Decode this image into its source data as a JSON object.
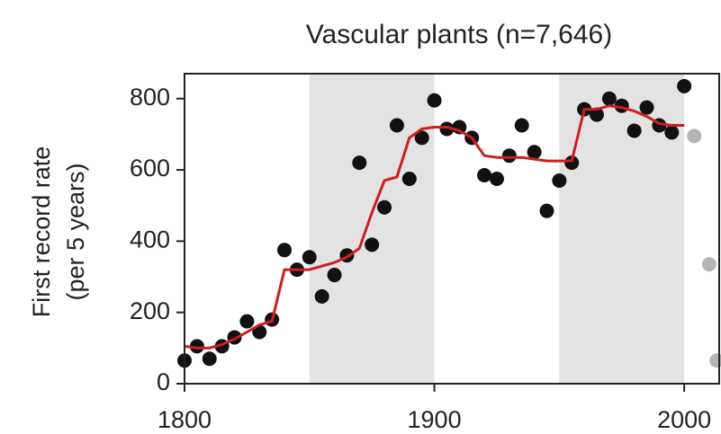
{
  "chart_data": {
    "type": "scatter",
    "title": "Vascular plants (n=7,646)",
    "y_label": [
      "First record rate",
      "(per 5 years)"
    ],
    "xlim": [
      1800,
      2014
    ],
    "ylim": [
      0,
      870
    ],
    "xticks": [
      1800,
      1900,
      2000
    ],
    "yticks": [
      0,
      200,
      400,
      600,
      800
    ],
    "shaded_ranges": [
      [
        1850,
        1900
      ],
      [
        1950,
        2000
      ]
    ],
    "shade_color": "#e3e3e3",
    "points": {
      "color": "#111111",
      "x": [
        1800,
        1805,
        1810,
        1815,
        1820,
        1825,
        1830,
        1835,
        1840,
        1845,
        1850,
        1855,
        1860,
        1865,
        1870,
        1875,
        1880,
        1885,
        1890,
        1895,
        1900,
        1905,
        1910,
        1915,
        1920,
        1925,
        1930,
        1935,
        1940,
        1945,
        1950,
        1955,
        1960,
        1965,
        1970,
        1975,
        1980,
        1985,
        1990,
        1995,
        2000
      ],
      "values": [
        65,
        105,
        70,
        105,
        130,
        175,
        145,
        180,
        375,
        320,
        355,
        245,
        305,
        360,
        620,
        390,
        495,
        725,
        575,
        690,
        795,
        715,
        720,
        690,
        585,
        575,
        640,
        725,
        650,
        485,
        570,
        620,
        770,
        755,
        800,
        780,
        710,
        775,
        725,
        705,
        835
      ]
    },
    "excluded_points": {
      "color": "#b5b5b5",
      "x": [
        2004,
        2010,
        2013
      ],
      "values": [
        695,
        335,
        65
      ]
    },
    "trend": {
      "color": "#cc1f1f",
      "x": [
        1800,
        1805,
        1810,
        1815,
        1820,
        1825,
        1830,
        1835,
        1840,
        1845,
        1850,
        1855,
        1860,
        1865,
        1870,
        1875,
        1880,
        1885,
        1890,
        1895,
        1900,
        1905,
        1910,
        1915,
        1920,
        1925,
        1930,
        1935,
        1940,
        1945,
        1950,
        1955,
        1960,
        1965,
        1970,
        1975,
        1980,
        1985,
        1990,
        1995,
        2000
      ],
      "values": [
        105,
        100,
        100,
        110,
        125,
        145,
        165,
        175,
        320,
        320,
        320,
        330,
        340,
        355,
        380,
        480,
        570,
        580,
        690,
        715,
        720,
        720,
        710,
        690,
        640,
        635,
        635,
        635,
        630,
        625,
        625,
        625,
        770,
        770,
        780,
        775,
        765,
        750,
        730,
        725,
        725
      ]
    }
  }
}
